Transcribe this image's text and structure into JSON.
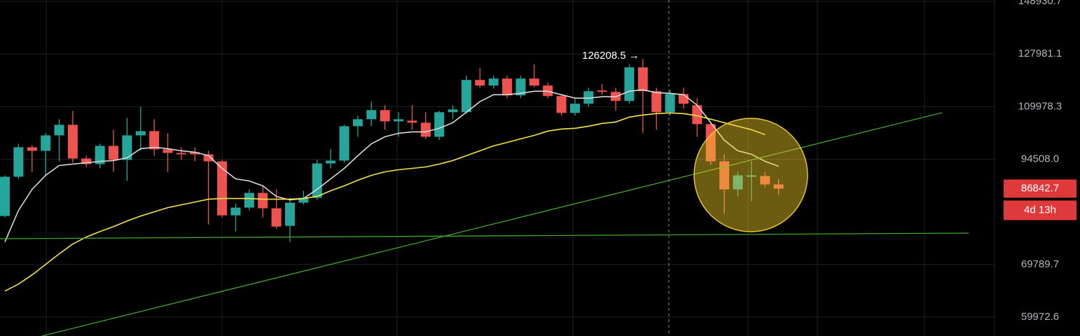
{
  "chart_data": {
    "type": "candlestick",
    "log": true,
    "ylim": [
      56790,
      149534
    ],
    "yticks": [
      148930.7,
      127981.1,
      109978.3,
      {
        "value": 94508,
        "label": "94508.0"
      },
      69789.7,
      59972.6
    ],
    "grid": true,
    "up_color": "#26a69a",
    "down_color": "#ef5350",
    "open": [
      80240,
      89860,
      97820,
      96840,
      101240,
      104360,
      94710,
      93190,
      98210,
      94330,
      101240,
      102480,
      97230,
      96250,
      96450,
      95860,
      93940,
      80400,
      82210,
      85780,
      82050,
      78000,
      83380,
      84570,
      93370,
      94140,
      103940,
      106060,
      108880,
      105420,
      105630,
      104990,
      100830,
      108220,
      108220,
      118770,
      116860,
      119250,
      113600,
      119250,
      116860,
      113380,
      108000,
      110890,
      115220,
      114750,
      111790,
      123160,
      114980,
      108220,
      114060,
      110430,
      104570,
      93940,
      86640,
      89860,
      90040,
      87890
    ],
    "high": [
      90220,
      98810,
      98410,
      101850,
      106060,
      108660,
      95480,
      98810,
      102900,
      106490,
      109990,
      106060,
      101850,
      97820,
      97820,
      96840,
      94330,
      83210,
      86640,
      87530,
      86640,
      84570,
      86300,
      94330,
      97420,
      104360,
      107140,
      111560,
      110430,
      108220,
      110430,
      108220,
      108660,
      110430,
      120220,
      122920,
      120220,
      120220,
      120220,
      124170,
      117830,
      113830,
      112690,
      116150,
      117330,
      116150,
      124170,
      126208.5,
      116150,
      115450,
      116150,
      112690,
      104990,
      95860,
      91130,
      93940,
      91130,
      89310
    ],
    "low": [
      79910,
      89310,
      91130,
      90220,
      93940,
      93560,
      92430,
      92060,
      91130,
      88770,
      96840,
      95480,
      91130,
      94330,
      93940,
      78310,
      79910,
      76750,
      81550,
      79910,
      77370,
      74470,
      82880,
      84060,
      92060,
      93560,
      100830,
      103940,
      102900,
      100830,
      102900,
      100220,
      99810,
      106060,
      107790,
      116150,
      115920,
      112690,
      112690,
      116390,
      112690,
      107140,
      107140,
      109990,
      113830,
      108660,
      110890,
      101850,
      102900,
      107140,
      109330,
      100830,
      93000,
      80730,
      84910,
      83720,
      87180,
      85260
    ],
    "close": [
      89860,
      97820,
      96840,
      101240,
      104360,
      94710,
      93190,
      98210,
      94330,
      101240,
      102480,
      97230,
      96250,
      95860,
      95860,
      93940,
      80400,
      82210,
      85780,
      82050,
      77840,
      83380,
      84570,
      93370,
      94140,
      103940,
      106060,
      108880,
      105420,
      106060,
      104990,
      100830,
      108220,
      109100,
      118770,
      116860,
      119250,
      113600,
      119250,
      116860,
      113380,
      108000,
      110890,
      114980,
      114750,
      111790,
      123160,
      114980,
      108220,
      114060,
      110890,
      104570,
      93940,
      86640,
      90220,
      90220,
      87890,
      86842.7
    ],
    "lines": [
      {
        "color": "#d9d9d9",
        "values": [
          74470,
          81550,
          86640,
          90220,
          92810,
          93190,
          93560,
          93940,
          94140,
          94900,
          97420,
          97820,
          97420,
          96840,
          96450,
          95480,
          92060,
          89310,
          88770,
          87530,
          84910,
          84060,
          84400,
          86640,
          89310,
          92060,
          95480,
          98810,
          100830,
          101850,
          102270,
          102270,
          103310,
          104990,
          108220,
          111560,
          113830,
          113830,
          114290,
          114980,
          114980,
          113830,
          112690,
          112690,
          113150,
          113150,
          114980,
          115450,
          114520,
          114290,
          113830,
          110430,
          104990,
          99810,
          96840,
          95860,
          93940,
          92620
        ]
      },
      {
        "color": "#f5e44a",
        "values": [
          64640,
          65960,
          67720,
          69790,
          71960,
          74020,
          75530,
          76750,
          77840,
          79110,
          80240,
          81220,
          82210,
          82880,
          83550,
          84230,
          84400,
          84400,
          84400,
          84230,
          84230,
          84230,
          84400,
          84910,
          86300,
          87530,
          88950,
          90220,
          91130,
          91680,
          92060,
          92430,
          93190,
          94140,
          95480,
          96840,
          98210,
          99200,
          100220,
          101240,
          102480,
          103100,
          103310,
          103940,
          104780,
          105200,
          106710,
          107360,
          107790,
          108000,
          107790,
          107140,
          106060,
          104990,
          103940,
          102900,
          101440,
          null
        ]
      }
    ],
    "high_label": {
      "value": 126208.5,
      "label": "126208.5 →"
    },
    "last_price": 86842.7,
    "countdown": "4d 13h"
  }
}
